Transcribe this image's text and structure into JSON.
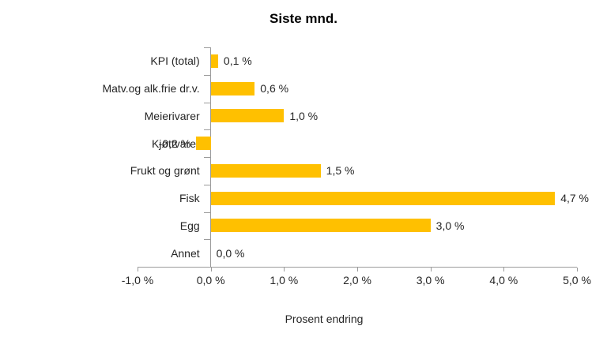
{
  "chart_data": {
    "type": "bar",
    "orientation": "horizontal",
    "title": "Siste mnd.",
    "xlabel": "Prosent endring",
    "ylabel": "",
    "categories": [
      "KPI (total)",
      "Matv.og alk.frie dr.v.",
      "Meierivarer",
      "Kjøttvarer",
      "Frukt og grønt",
      "Fisk",
      "Egg",
      "Annet"
    ],
    "values": [
      0.1,
      0.6,
      1.0,
      -0.2,
      1.5,
      4.7,
      3.0,
      0.0
    ],
    "value_labels": [
      "0,1 %",
      "0,6 %",
      "1,0 %",
      "-0,2 %",
      "1,5 %",
      "4,7 %",
      "3,0 %",
      "0,0 %"
    ],
    "xlim": [
      -1.0,
      5.0
    ],
    "xticks": [
      -1.0,
      0.0,
      1.0,
      2.0,
      3.0,
      4.0,
      5.0
    ],
    "xtick_labels": [
      "-1,0 %",
      "0,0 %",
      "1,0 %",
      "2,0 %",
      "3,0 %",
      "4,0 %",
      "5,0 %"
    ],
    "grid": false,
    "legend": false,
    "bar_color": "#FFC000",
    "axis_color": "#9B9B9B",
    "text_color": "#262626"
  }
}
